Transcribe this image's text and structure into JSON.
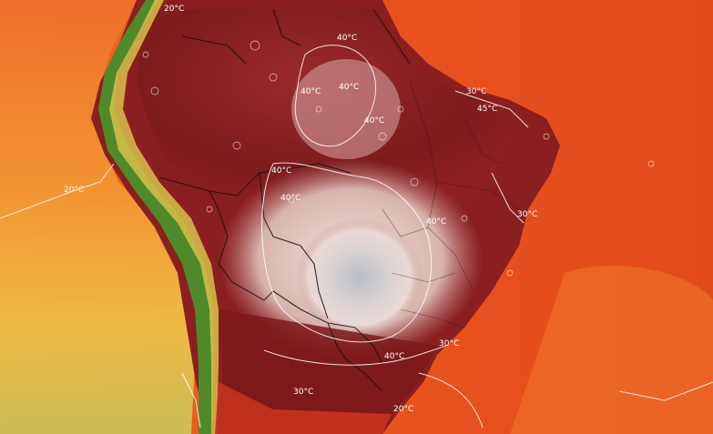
{
  "map": {
    "isotherm_labels": [
      {
        "id": "top-north-20",
        "text": "20°C"
      },
      {
        "id": "amazon-40-a",
        "text": "40°C"
      },
      {
        "id": "amazon-40-b",
        "text": "40°C"
      },
      {
        "id": "amazon-40-c",
        "text": "40°C"
      },
      {
        "id": "amazon-40-d",
        "text": "40°C"
      },
      {
        "id": "northeast-30",
        "text": "30°C"
      },
      {
        "id": "northeast-45",
        "text": "45°C"
      },
      {
        "id": "west-40",
        "text": "40°C"
      },
      {
        "id": "center-40",
        "text": "40°C"
      },
      {
        "id": "pacific-20",
        "text": "20°C"
      },
      {
        "id": "atlantic-30",
        "text": "30°C"
      },
      {
        "id": "central-40",
        "text": "40°C"
      },
      {
        "id": "south-40",
        "text": "40°C"
      },
      {
        "id": "southeast-30",
        "text": "30°C"
      },
      {
        "id": "argentina-30",
        "text": "30°C"
      },
      {
        "id": "southern-20",
        "text": "20°C"
      }
    ],
    "colors": {
      "ocean_hot": "#e8541f",
      "ocean_warm": "#f08a2c",
      "ocean_cool": "#e9cf4a",
      "land_very_hot": "#7a1a1a",
      "land_hot": "#a02424",
      "land_extreme": "#e6dada",
      "land_peak": "#b9bcc4",
      "andes_green": "#5b8f2d"
    }
  }
}
